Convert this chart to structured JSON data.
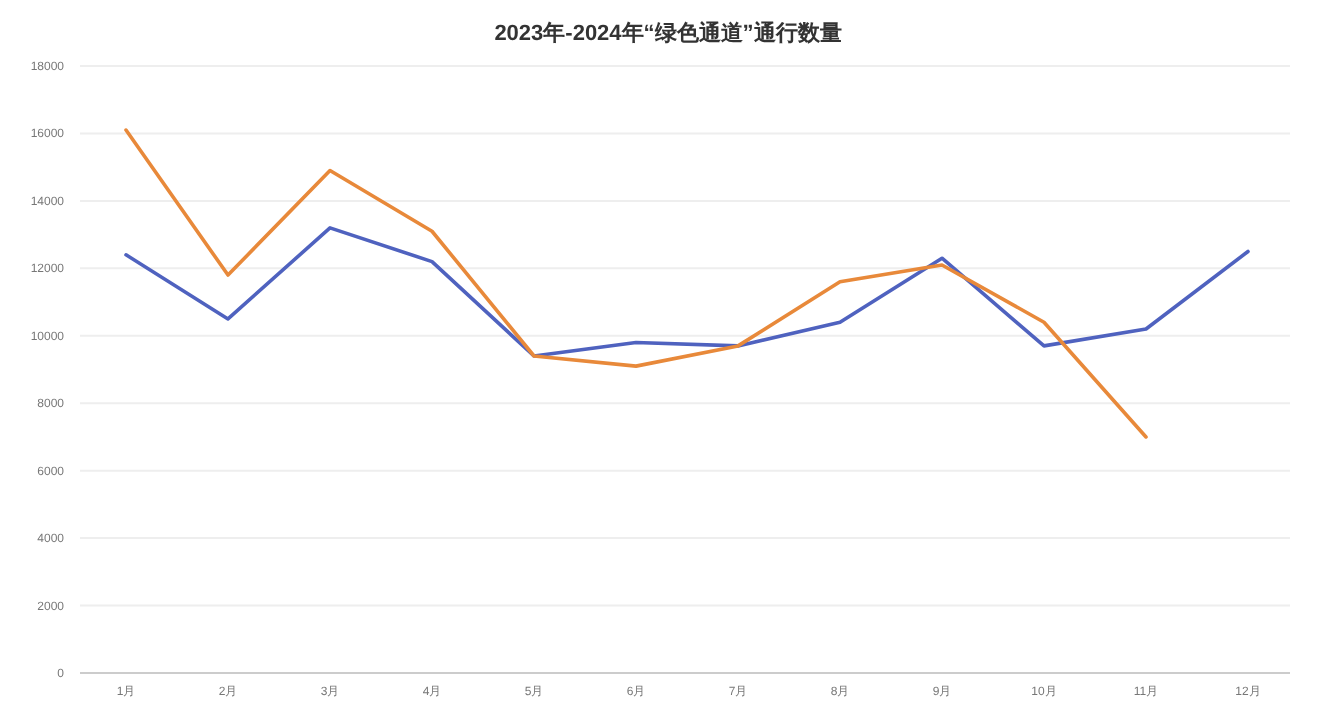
{
  "chart_data": {
    "type": "line",
    "title": "2023年-2024年“绿色通道”通行数量",
    "categories": [
      "1月",
      "2月",
      "3月",
      "4月",
      "5月",
      "6月",
      "7月",
      "8月",
      "9月",
      "10月",
      "11月",
      "12月"
    ],
    "series": [
      {
        "color": "#4f62bf",
        "values": [
          12400,
          10500,
          13200,
          12200,
          9400,
          9800,
          9700,
          10400,
          12300,
          9700,
          10200,
          12500
        ]
      },
      {
        "color": "#e8893a",
        "values": [
          16100,
          11800,
          14900,
          13100,
          9400,
          9100,
          9700,
          11600,
          12100,
          10400,
          7000,
          null
        ]
      }
    ],
    "ylim": [
      0,
      18000
    ],
    "yticks": [
      0,
      2000,
      4000,
      6000,
      8000,
      10000,
      12000,
      14000,
      16000,
      18000
    ],
    "grid": "y",
    "marker": "none",
    "line_style": "solid"
  }
}
